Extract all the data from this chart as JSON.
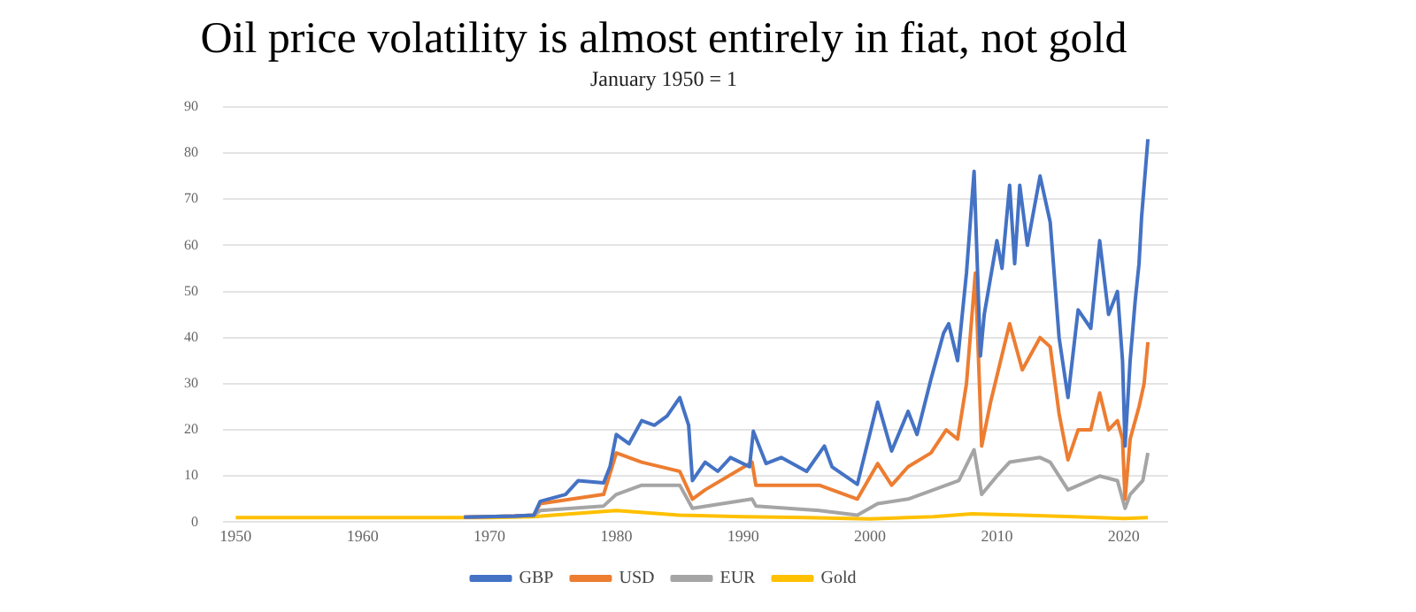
{
  "chart_data": {
    "type": "line",
    "title": "Oil price volatility is almost entirely in fiat, not gold",
    "subtitle": "January 1950 = 1",
    "xlim": [
      1949,
      2023.5
    ],
    "xticks": [
      1950,
      1960,
      1970,
      1980,
      1990,
      2000,
      2010,
      2020
    ],
    "ylim": [
      0,
      90
    ],
    "yticks": [
      0,
      10,
      20,
      30,
      40,
      50,
      60,
      70,
      80,
      90
    ],
    "grid": "y",
    "legend": "bottom",
    "marker": "none",
    "line_style": "solid",
    "series": [
      {
        "name": "GBP",
        "color": "#4472c4",
        "x": [
          1968,
          1972,
          1973.5,
          1974,
          1976,
          1977,
          1979,
          1979.5,
          1980,
          1981,
          1982,
          1983,
          1984,
          1985,
          1985.7,
          1986,
          1987,
          1988,
          1989,
          1990.5,
          1990.8,
          1991.8,
          1993,
          1995,
          1996.4,
          1997,
          1999,
          2000.6,
          2001.7,
          2003,
          2003.7,
          2004.8,
          2005.8,
          2006.2,
          2006.9,
          2007.6,
          2008.2,
          2008.7,
          2009,
          2010,
          2010.4,
          2011,
          2011.4,
          2011.8,
          2012.4,
          2013.4,
          2014.2,
          2014.9,
          2015.6,
          2016.4,
          2017.4,
          2018.1,
          2018.8,
          2019.5,
          2019.9,
          2020.1,
          2020.5,
          2020.9,
          2021.2,
          2021.4,
          2021.9
        ],
        "values": [
          1.1,
          1.3,
          1.5,
          4.5,
          6,
          9,
          8.5,
          12,
          19,
          17,
          22,
          21,
          23,
          27,
          21,
          9,
          13,
          11,
          14,
          12,
          19.7,
          12.7,
          14,
          11,
          16.5,
          12,
          8.2,
          26,
          15.4,
          24,
          19,
          31,
          41,
          43,
          35,
          54,
          76,
          36,
          45,
          61,
          55,
          73,
          56,
          73,
          60,
          75,
          65,
          40,
          27,
          46,
          42,
          61,
          45,
          50,
          35,
          16.5,
          35,
          48,
          56,
          66,
          83
        ]
      },
      {
        "name": "USD",
        "color": "#ed7d31",
        "x": [
          1968,
          1972,
          1973.5,
          1974,
          1979,
          1980,
          1982,
          1985,
          1986,
          1987,
          1990.7,
          1991,
          1996,
          1999,
          2000.6,
          2001.7,
          2003,
          2004.8,
          2006,
          2006.9,
          2007.6,
          2008.3,
          2008.8,
          2009.5,
          2011,
          2012,
          2013.4,
          2014.2,
          2014.9,
          2015.6,
          2016.4,
          2017.4,
          2018.1,
          2018.8,
          2019.5,
          2019.9,
          2020.1,
          2020.5,
          2021.2,
          2021.6,
          2021.9
        ],
        "values": [
          1.1,
          1.3,
          1.5,
          4,
          6,
          15,
          13,
          11,
          5,
          7,
          13,
          8,
          8,
          5,
          12.7,
          8,
          12,
          15,
          20,
          18,
          30,
          54,
          16.5,
          26,
          43,
          33,
          40,
          38,
          23.5,
          13.5,
          20,
          20,
          28,
          20,
          22,
          18,
          5,
          18,
          25,
          30,
          39
        ]
      },
      {
        "name": "EUR",
        "color": "#a5a5a5",
        "x": [
          1968,
          1972,
          1973.5,
          1974,
          1979,
          1980,
          1982,
          1985,
          1986,
          1990.7,
          1991,
          1996,
          1999,
          2000.6,
          2003,
          2005,
          2007,
          2008.2,
          2008.8,
          2010,
          2011,
          2013.4,
          2014.2,
          2015.6,
          2018.1,
          2019.5,
          2020.1,
          2020.5,
          2021.5,
          2021.9
        ],
        "values": [
          1.1,
          1.3,
          1.5,
          2.5,
          3.5,
          6,
          8,
          8,
          3,
          5,
          3.5,
          2.5,
          1.5,
          4,
          5,
          7,
          9,
          15.7,
          6,
          10,
          13,
          14,
          13,
          7,
          10,
          9,
          3,
          6,
          9,
          15
        ]
      },
      {
        "name": "Gold",
        "color": "#ffc000",
        "x": [
          1950,
          1960,
          1970,
          1973.5,
          1975,
          1980,
          1985,
          1990,
          1995,
          2000,
          2005,
          2008,
          2012,
          2016,
          2020,
          2021.9
        ],
        "values": [
          1,
          1,
          1,
          1.2,
          1.5,
          2.5,
          1.5,
          1.2,
          1,
          0.7,
          1.2,
          1.8,
          1.5,
          1.2,
          0.8,
          1
        ]
      }
    ]
  }
}
